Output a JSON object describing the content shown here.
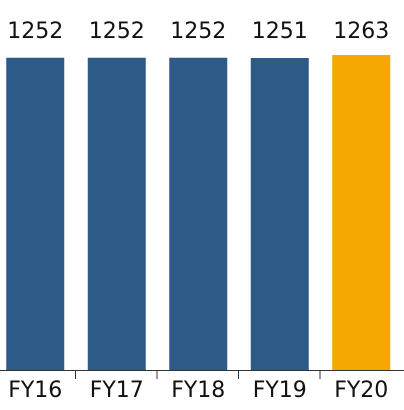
{
  "chart_data": {
    "type": "bar",
    "categories": [
      "FY16",
      "FY17",
      "FY18",
      "FY19",
      "FY20"
    ],
    "values": [
      1252,
      1252,
      1252,
      1251,
      1263
    ],
    "colors": [
      "#2e5a87",
      "#2e5a87",
      "#2e5a87",
      "#2e5a87",
      "#f5a800"
    ],
    "ylim": [
      0,
      1263
    ]
  }
}
